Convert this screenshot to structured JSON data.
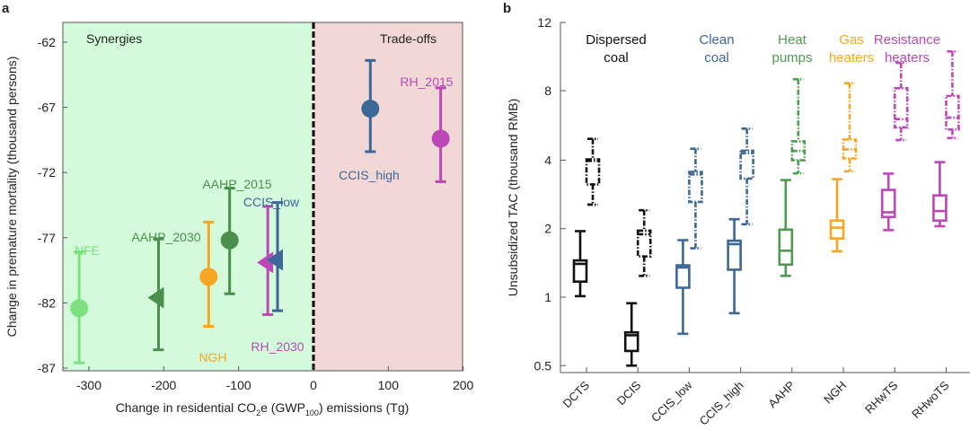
{
  "colors": {
    "black": "#111111",
    "blue": "#3c6797",
    "green": "#4e9a50",
    "lightgreen": "#7de07f",
    "darkgreen": "#4b8f4d",
    "orange": "#f6a623",
    "magenta": "#bb48b6",
    "synergy_bg": "#d4fadc",
    "tradeoff_bg": "#f2d7d7"
  },
  "chart_data": [
    {
      "panel": "a",
      "type": "scatter",
      "xlabel": "Change in residential CO2e (GWP100) emissions (Tg)",
      "xlabel_parts": {
        "pre": "Change in residential CO",
        "sub1": "2",
        "mid": "e (GWP",
        "sub2": "100",
        "post": ") emissions (Tg)"
      },
      "ylabel": "Change in premature mortality (thousand persons)",
      "xlim": [
        -334,
        200
      ],
      "ylim": [
        -87,
        -60.5
      ],
      "xticks": [
        -300,
        -200,
        -100,
        0,
        100,
        200
      ],
      "yticks": [
        -62,
        -67,
        -72,
        -77,
        -82,
        -87
      ],
      "region_labels": {
        "left": "Synergies",
        "right": "Trade-offs"
      },
      "points": [
        {
          "label": "NFE",
          "x": -313,
          "y": -82.4,
          "low": -86.6,
          "high": -78.1,
          "marker": "circle",
          "color": "lightgreen"
        },
        {
          "label": "AAHP_2030",
          "x": -207,
          "y": -81.6,
          "low": -85.6,
          "high": -77.1,
          "marker": "triangle-left",
          "color": "darkgreen"
        },
        {
          "label": "NGH",
          "x": -140,
          "y": -80.0,
          "low": -83.8,
          "high": -75.8,
          "marker": "circle",
          "color": "orange"
        },
        {
          "label": "AAHP_2015",
          "x": -112,
          "y": -77.2,
          "low": -81.3,
          "high": -73.2,
          "marker": "circle",
          "color": "darkgreen"
        },
        {
          "label": "RH_2030",
          "x": -61,
          "y": -78.9,
          "low": -82.9,
          "high": -74.6,
          "marker": "triangle-left",
          "color": "magenta"
        },
        {
          "label": "CCIS_low",
          "x": -48,
          "y": -78.7,
          "low": -82.6,
          "high": -74.3,
          "marker": "triangle-left",
          "color": "blue"
        },
        {
          "label": "CCIS_high",
          "x": 76,
          "y": -67.1,
          "low": -70.4,
          "high": -63.4,
          "marker": "circle",
          "color": "blue"
        },
        {
          "label": "RH_2015",
          "x": 170,
          "y": -69.4,
          "low": -72.7,
          "high": -65.5,
          "marker": "circle",
          "color": "magenta"
        }
      ]
    },
    {
      "panel": "b",
      "type": "box",
      "ylabel": "Unsubsidized TAC (thousand RMB)",
      "yticks": [
        0.5,
        1,
        2,
        4,
        8,
        12
      ],
      "categories": [
        "DCTS",
        "DCIS",
        "CCIS_low",
        "CCIS_high",
        "AAHP",
        "NGH",
        "RHwTS",
        "RHwoTS"
      ],
      "groups": [
        {
          "label": [
            "Dispersed",
            "coal"
          ],
          "color": "black"
        },
        {
          "label": [
            "Clean",
            "coal"
          ],
          "color": "blue"
        },
        {
          "label": [
            "Heat",
            "pumps"
          ],
          "color": "green"
        },
        {
          "label": [
            "Gas",
            "heaters"
          ],
          "color": "orange"
        },
        {
          "label": [
            "Resistance",
            "heaters"
          ],
          "color": "magenta"
        }
      ],
      "series": [
        {
          "name": "solid",
          "style": "solid",
          "boxes": [
            {
              "cat": "DCTS",
              "color": "black",
              "min": 1.01,
              "q1": 1.17,
              "median": 1.4,
              "q3": 1.45,
              "max": 1.95
            },
            {
              "cat": "DCIS",
              "color": "black",
              "min": 0.5,
              "q1": 0.58,
              "median": 0.68,
              "q3": 0.7,
              "max": 0.94
            },
            {
              "cat": "CCIS_low",
              "color": "blue",
              "min": 0.69,
              "q1": 1.1,
              "median": 1.35,
              "q3": 1.38,
              "max": 1.78
            },
            {
              "cat": "CCIS_high",
              "color": "blue",
              "min": 0.85,
              "q1": 1.32,
              "median": 1.71,
              "q3": 1.77,
              "max": 2.2
            },
            {
              "cat": "AAHP",
              "color": "green",
              "min": 1.24,
              "q1": 1.39,
              "median": 1.6,
              "q3": 1.98,
              "max": 3.27
            },
            {
              "cat": "NGH",
              "color": "orange",
              "min": 1.59,
              "q1": 1.81,
              "median": 2.02,
              "q3": 2.17,
              "max": 3.3
            },
            {
              "cat": "RHwTS",
              "color": "magenta",
              "min": 1.97,
              "q1": 2.25,
              "median": 2.36,
              "q3": 2.96,
              "max": 3.49
            },
            {
              "cat": "RHwoTS",
              "color": "magenta",
              "min": 2.05,
              "q1": 2.17,
              "median": 2.39,
              "q3": 2.8,
              "max": 3.92
            }
          ]
        },
        {
          "name": "dashed",
          "style": "dash-dot",
          "boxes": [
            {
              "cat": "DCTS",
              "color": "black",
              "min": 2.55,
              "q1": 3.13,
              "median": 3.97,
              "q3": 4.03,
              "max": 4.96
            },
            {
              "cat": "DCIS",
              "color": "black",
              "min": 1.24,
              "q1": 1.51,
              "median": 1.89,
              "q3": 1.96,
              "max": 2.41
            },
            {
              "cat": "CCIS_low",
              "color": "blue",
              "min": 1.64,
              "q1": 2.62,
              "median": 3.46,
              "q3": 3.55,
              "max": 4.49
            },
            {
              "cat": "CCIS_high",
              "color": "blue",
              "min": 2.09,
              "q1": 3.32,
              "median": 4.29,
              "q3": 4.4,
              "max": 5.5
            },
            {
              "cat": "AAHP",
              "color": "green",
              "min": 3.5,
              "q1": 4.0,
              "median": 4.39,
              "q3": 4.84,
              "max": 8.67
            },
            {
              "cat": "NGH",
              "color": "orange",
              "min": 3.57,
              "q1": 4.07,
              "median": 4.46,
              "q3": 4.93,
              "max": 8.44
            },
            {
              "cat": "RHwTS",
              "color": "magenta",
              "min": 4.9,
              "q1": 5.57,
              "median": 6.06,
              "q3": 8.14,
              "max": 9.63
            },
            {
              "cat": "RHwoTS",
              "color": "magenta",
              "min": 5.0,
              "q1": 5.45,
              "median": 6.15,
              "q3": 7.66,
              "max": 10.3
            }
          ]
        }
      ]
    }
  ]
}
